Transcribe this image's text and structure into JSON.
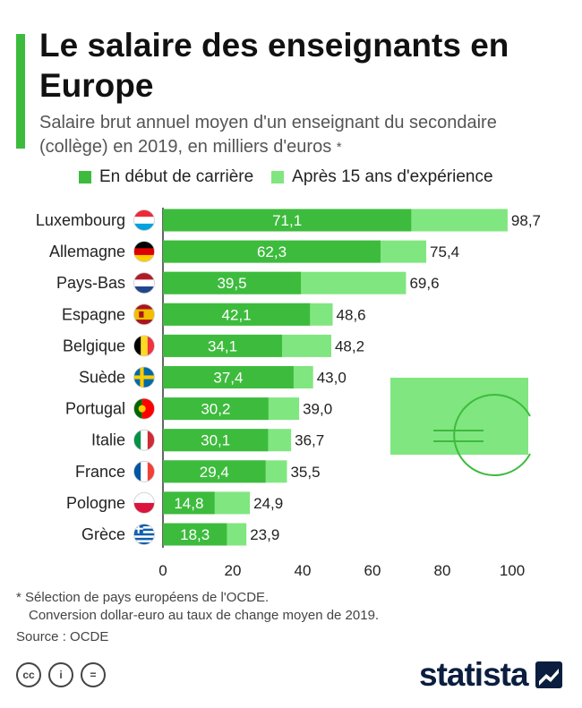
{
  "header": {
    "title": "Le salaire des enseignants en Europe",
    "subtitle": "Salaire brut annuel moyen d'un enseignant du secondaire (collège) en 2019, en milliers d'euros",
    "subtitle_mark": "*"
  },
  "legend": {
    "start_label": "En début de carrière",
    "experienced_label": "Après 15 ans d'expérience"
  },
  "colors": {
    "start": "#3dbb3d",
    "experienced": "#80e680",
    "accent": "#3dbb3d",
    "euro_box": "#80e680",
    "euro_line": "#3dbb3d"
  },
  "chart_data": {
    "type": "bar",
    "orientation": "horizontal",
    "categories": [
      "Luxembourg",
      "Allemagne",
      "Pays-Bas",
      "Espagne",
      "Belgique",
      "Suède",
      "Portugal",
      "Italie",
      "France",
      "Pologne",
      "Grèce"
    ],
    "series": [
      {
        "name": "En début de carrière",
        "values": [
          71.1,
          62.3,
          39.5,
          42.1,
          34.1,
          37.4,
          30.2,
          30.1,
          29.4,
          14.8,
          18.3
        ],
        "labels": [
          "71,1",
          "62,3",
          "39,5",
          "42,1",
          "34,1",
          "37,4",
          "30,2",
          "30,1",
          "29,4",
          "14,8",
          "18,3"
        ]
      },
      {
        "name": "Après 15 ans d'expérience",
        "values": [
          98.7,
          75.4,
          69.6,
          48.6,
          48.2,
          43.0,
          39.0,
          36.7,
          35.5,
          24.9,
          23.9
        ],
        "labels": [
          "98,7",
          "75,4",
          "69,6",
          "48,6",
          "48,2",
          "43,0",
          "39,0",
          "36,7",
          "35,5",
          "24,9",
          "23,9"
        ]
      }
    ],
    "xlim": [
      0,
      100
    ],
    "xticks": [
      0,
      20,
      40,
      60,
      80,
      100
    ],
    "xtick_labels": [
      "0",
      "20",
      "40",
      "60",
      "80",
      "100"
    ],
    "flags": [
      "luxembourg-flag-icon",
      "germany-flag-icon",
      "netherlands-flag-icon",
      "spain-flag-icon",
      "belgium-flag-icon",
      "sweden-flag-icon",
      "portugal-flag-icon",
      "italy-flag-icon",
      "france-flag-icon",
      "poland-flag-icon",
      "greece-flag-icon"
    ],
    "grid": false,
    "legend_position": "top"
  },
  "footnote": {
    "line1": "* Sélection de pays européens de l'OCDE.",
    "line2": "Conversion dollar-euro au taux de change moyen de 2019.",
    "source": "Source : OCDE"
  },
  "license_icons": [
    "cc-icon",
    "attribution-icon",
    "no-derivatives-icon"
  ],
  "license_glyphs": [
    "cc",
    "i",
    "="
  ],
  "brand": {
    "name": "statista"
  }
}
